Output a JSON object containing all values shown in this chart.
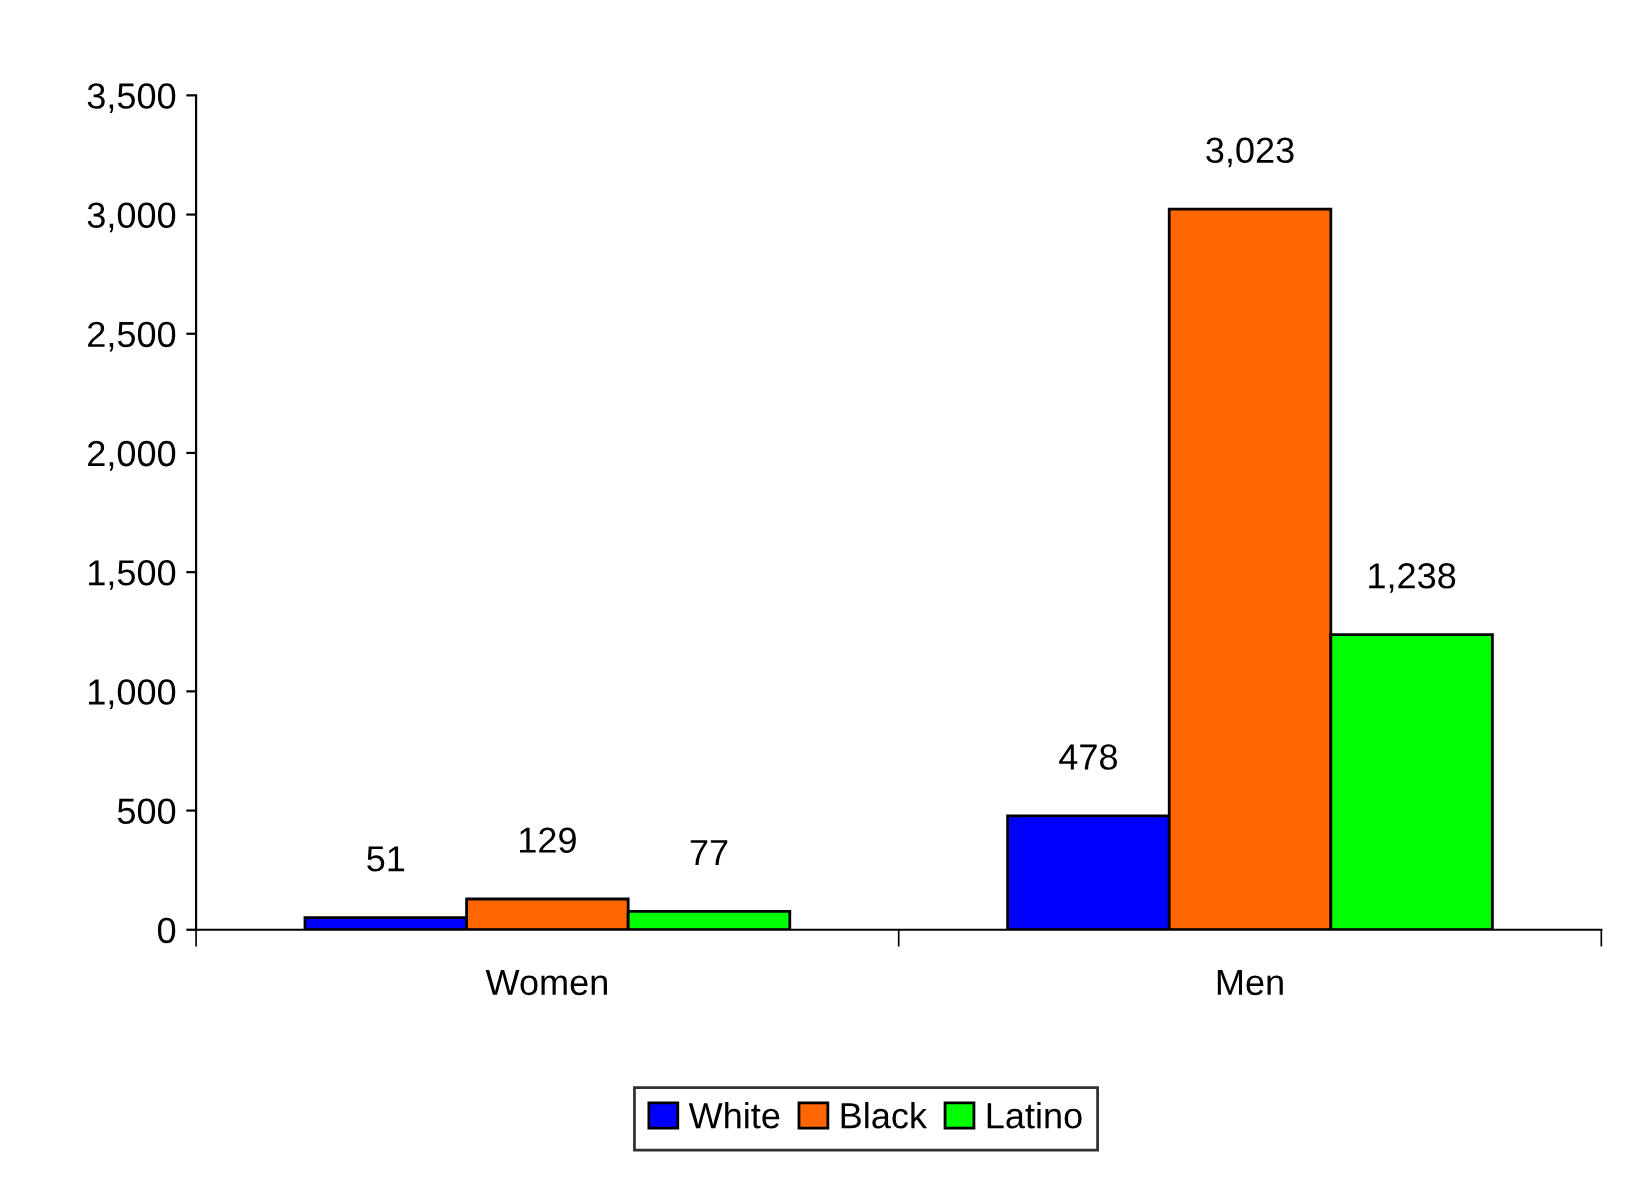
{
  "chart_data": {
    "type": "bar",
    "categories": [
      "Women",
      "Men"
    ],
    "series": [
      {
        "name": "White",
        "color": "#0000ff",
        "values": [
          51,
          478
        ]
      },
      {
        "name": "Black",
        "color": "#ff6600",
        "values": [
          129,
          3023
        ]
      },
      {
        "name": "Latino",
        "color": "#00ff00",
        "values": [
          77,
          1238
        ]
      }
    ],
    "value_labels": [
      [
        "51",
        "478"
      ],
      [
        "129",
        "3,023"
      ],
      [
        "77",
        "1,238"
      ]
    ],
    "ylim": [
      0,
      3500
    ],
    "yticks": [
      0,
      {
        "value": 500,
        "label": "500"
      },
      {
        "value": 1000,
        "label": "1,000"
      },
      {
        "value": 1500,
        "label": "1,500"
      },
      {
        "value": 2000,
        "label": "2,000"
      },
      {
        "value": 2500,
        "label": "2,500"
      },
      {
        "value": 3000,
        "label": "3,000"
      },
      {
        "value": 3500,
        "label": "3,500"
      }
    ],
    "grid": false,
    "legend": "bottom"
  }
}
